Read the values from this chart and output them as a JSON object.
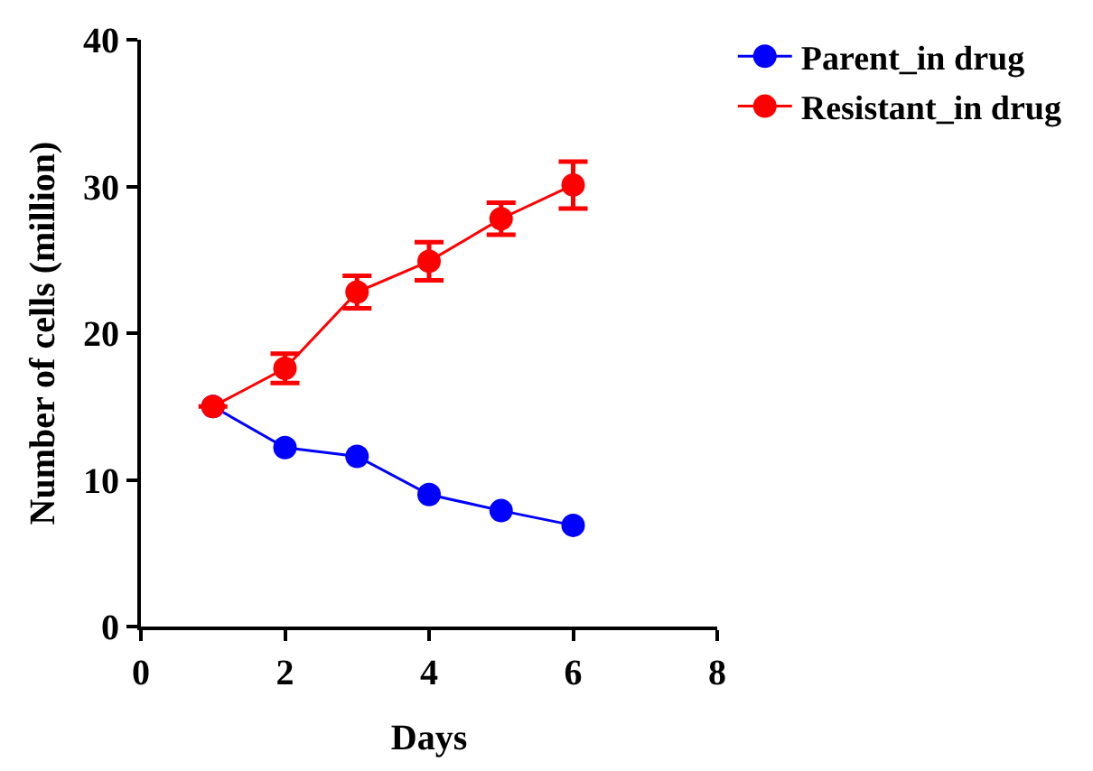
{
  "chart_data": {
    "type": "line",
    "xlabel": "Days",
    "ylabel": "Number of cells (million)",
    "x": [
      1,
      2,
      3,
      4,
      5,
      6
    ],
    "series": [
      {
        "name": "Parent_in drug",
        "color": "#0000ff",
        "values": [
          15,
          12.2,
          11.6,
          9,
          7.9,
          6.9
        ]
      },
      {
        "name": "Resistant_in drug",
        "color": "#ff0000",
        "values": [
          15,
          17.6,
          22.8,
          24.9,
          27.8,
          30.1
        ],
        "errors": [
          null,
          1,
          1.1,
          1.3,
          1.1,
          1.6
        ]
      }
    ],
    "xlim": [
      0,
      8
    ],
    "xticks": [
      0,
      2,
      4,
      6,
      8
    ],
    "ylim": [
      0,
      40
    ],
    "yticks": [
      0,
      10,
      20,
      30,
      40
    ],
    "grid": false,
    "legend": "top right",
    "marker": "circle",
    "line_style": "solid"
  }
}
